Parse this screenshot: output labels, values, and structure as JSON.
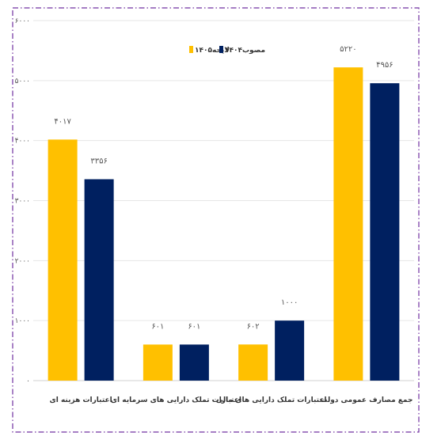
{
  "chart_data": {
    "type": "bar",
    "categories": [
      "اعتبارات هزینه ای",
      "اعتبارات تملک دارایی های سرمایه ای",
      "اعتبارات تملک دارایی های مالی",
      "جمع مصارف عمومی دولت"
    ],
    "series": [
      {
        "name": "لایحه۱۴۰۵",
        "color": "#FFC000",
        "values": [
          4017,
          601,
          602,
          5220
        ],
        "labels": [
          "۴۰۱۷",
          "۶۰۱",
          "۶۰۲",
          "۵۲۲۰"
        ]
      },
      {
        "name": "مصوب۱۴۰۴",
        "color": "#002060",
        "values": [
          3356,
          601,
          1000,
          4956
        ],
        "labels": [
          "۳۳۵۶",
          "۶۰۱",
          "۱۰۰۰",
          "۴۹۵۶"
        ]
      }
    ],
    "yticks": [
      0,
      1000,
      2000,
      3000,
      4000,
      5000,
      6000
    ],
    "ytick_labels": [
      "۰",
      "۱۰۰۰",
      "۲۰۰۰",
      "۳۰۰۰",
      "۴۰۰۰",
      "۵۰۰۰",
      "۶۰۰۰"
    ],
    "ylim": [
      0,
      6000
    ],
    "grid": true,
    "legend": "top-center",
    "title": "",
    "xlabel": "",
    "ylabel": ""
  }
}
